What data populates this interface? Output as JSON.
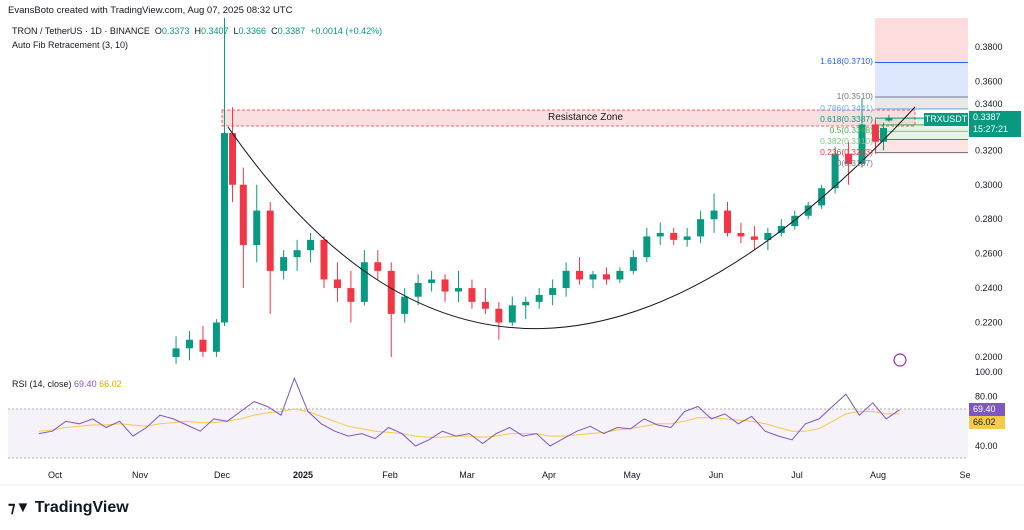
{
  "header": {
    "credit": "EvansBoto created with TradingView.com, Aug 07, 2025 08:32 UTC",
    "symbol": "TRON / TetherUS · 1D · BINANCE",
    "o_label": "O",
    "o": "0.3373",
    "h_label": "H",
    "h": "0.3407",
    "l_label": "L",
    "l": "0.3366",
    "c_label": "C",
    "c": "0.3387",
    "change": "+0.0014 (+0.42%)",
    "indicator": "Auto Fib Retracement (3, 10)"
  },
  "colors": {
    "up": "#089981",
    "down": "#f23645",
    "rsi": "#7e57c2",
    "rsi_ma": "#f7c948",
    "cup": "#131722"
  },
  "chart_data": [
    {
      "type": "candlestick",
      "price_axis": {
        "ticks": [
          "0.3800",
          "0.3600",
          "0.3400",
          "0.3200",
          "0.3000",
          "0.2800",
          "0.2600",
          "0.2400",
          "0.2200",
          "0.2000"
        ],
        "range": [
          0.195,
          0.39
        ]
      },
      "time_axis": {
        "ticks": [
          "Oct",
          "Nov",
          "Dec",
          "2025",
          "Feb",
          "Mar",
          "Apr",
          "May",
          "Jun",
          "Jul",
          "Aug",
          "Se"
        ]
      },
      "last_price": {
        "symbol": "TRXUSDT",
        "value": "0.3387",
        "countdown": "15:27:21"
      },
      "annotation": "Resistance Zone",
      "resistance_zone": [
        0.3348,
        0.344
      ],
      "fib_levels": [
        {
          "label": "1.618(0.3710)",
          "value": 0.371,
          "color": "#2962ff"
        },
        {
          "label": "1(0.3510)",
          "value": 0.351,
          "color": "#787b86"
        },
        {
          "label": "0.786(0.3441)",
          "value": 0.3441,
          "color": "#64b5f6"
        },
        {
          "label": "0.618(0.3387)",
          "value": 0.3387,
          "color": "#089981"
        },
        {
          "label": "0.5(0.3348)",
          "value": 0.3348,
          "color": "#4caf50"
        },
        {
          "label": "0.382(0.3310)",
          "value": 0.331,
          "color": "#81c784"
        },
        {
          "label": "0.236(0.3263)",
          "value": 0.3263,
          "color": "#f23645"
        },
        {
          "label": "0(0.3187)",
          "value": 0.3187,
          "color": "#787b86"
        }
      ],
      "candles": [
        [
          "2024-11-15",
          0.2,
          0.212,
          0.196,
          0.205
        ],
        [
          "2024-11-20",
          0.205,
          0.215,
          0.198,
          0.21
        ],
        [
          "2024-11-25",
          0.21,
          0.218,
          0.2,
          0.203
        ],
        [
          "2024-11-30",
          0.203,
          0.222,
          0.2,
          0.22
        ],
        [
          "2024-12-03",
          0.22,
          0.449,
          0.218,
          0.33
        ],
        [
          "2024-12-06",
          0.33,
          0.345,
          0.29,
          0.3
        ],
        [
          "2024-12-10",
          0.3,
          0.31,
          0.24,
          0.265
        ],
        [
          "2024-12-15",
          0.265,
          0.3,
          0.255,
          0.285
        ],
        [
          "2024-12-20",
          0.285,
          0.29,
          0.225,
          0.25
        ],
        [
          "2024-12-25",
          0.25,
          0.262,
          0.245,
          0.258
        ],
        [
          "2024-12-30",
          0.258,
          0.268,
          0.25,
          0.262
        ],
        [
          "2025-01-04",
          0.262,
          0.272,
          0.255,
          0.268
        ],
        [
          "2025-01-09",
          0.268,
          0.27,
          0.24,
          0.245
        ],
        [
          "2025-01-14",
          0.245,
          0.255,
          0.232,
          0.24
        ],
        [
          "2025-01-19",
          0.24,
          0.25,
          0.22,
          0.232
        ],
        [
          "2025-01-24",
          0.232,
          0.262,
          0.23,
          0.255
        ],
        [
          "2025-01-29",
          0.255,
          0.262,
          0.245,
          0.25
        ],
        [
          "2025-02-03",
          0.25,
          0.255,
          0.2,
          0.225
        ],
        [
          "2025-02-08",
          0.225,
          0.24,
          0.22,
          0.235
        ],
        [
          "2025-02-13",
          0.235,
          0.248,
          0.23,
          0.243
        ],
        [
          "2025-02-18",
          0.243,
          0.25,
          0.238,
          0.245
        ],
        [
          "2025-02-23",
          0.245,
          0.248,
          0.232,
          0.238
        ],
        [
          "2025-02-28",
          0.238,
          0.25,
          0.232,
          0.24
        ],
        [
          "2025-03-05",
          0.24,
          0.245,
          0.228,
          0.232
        ],
        [
          "2025-03-10",
          0.232,
          0.24,
          0.225,
          0.228
        ],
        [
          "2025-03-15",
          0.228,
          0.232,
          0.21,
          0.22
        ],
        [
          "2025-03-20",
          0.22,
          0.235,
          0.218,
          0.23
        ],
        [
          "2025-03-25",
          0.23,
          0.235,
          0.222,
          0.232
        ],
        [
          "2025-03-30",
          0.232,
          0.24,
          0.228,
          0.236
        ],
        [
          "2025-04-04",
          0.236,
          0.245,
          0.23,
          0.24
        ],
        [
          "2025-04-09",
          0.24,
          0.255,
          0.235,
          0.25
        ],
        [
          "2025-04-14",
          0.25,
          0.258,
          0.242,
          0.245
        ],
        [
          "2025-04-19",
          0.245,
          0.25,
          0.24,
          0.248
        ],
        [
          "2025-04-24",
          0.248,
          0.252,
          0.242,
          0.245
        ],
        [
          "2025-04-29",
          0.245,
          0.252,
          0.243,
          0.25
        ],
        [
          "2025-05-04",
          0.25,
          0.262,
          0.248,
          0.258
        ],
        [
          "2025-05-09",
          0.258,
          0.275,
          0.255,
          0.27
        ],
        [
          "2025-05-14",
          0.27,
          0.278,
          0.265,
          0.272
        ],
        [
          "2025-05-19",
          0.272,
          0.275,
          0.265,
          0.268
        ],
        [
          "2025-05-24",
          0.268,
          0.275,
          0.264,
          0.27
        ],
        [
          "2025-05-29",
          0.27,
          0.285,
          0.266,
          0.28
        ],
        [
          "2025-06-03",
          0.28,
          0.295,
          0.272,
          0.285
        ],
        [
          "2025-06-08",
          0.285,
          0.29,
          0.27,
          0.272
        ],
        [
          "2025-06-13",
          0.272,
          0.278,
          0.266,
          0.27
        ],
        [
          "2025-06-18",
          0.27,
          0.276,
          0.262,
          0.268
        ],
        [
          "2025-06-23",
          0.268,
          0.275,
          0.262,
          0.272
        ],
        [
          "2025-06-28",
          0.272,
          0.28,
          0.27,
          0.276
        ],
        [
          "2025-07-03",
          0.276,
          0.285,
          0.274,
          0.282
        ],
        [
          "2025-07-08",
          0.282,
          0.29,
          0.28,
          0.288
        ],
        [
          "2025-07-13",
          0.288,
          0.3,
          0.286,
          0.298
        ],
        [
          "2025-07-18",
          0.298,
          0.322,
          0.295,
          0.318
        ],
        [
          "2025-07-23",
          0.318,
          0.325,
          0.3,
          0.312
        ],
        [
          "2025-07-28",
          0.312,
          0.35,
          0.31,
          0.335
        ],
        [
          "2025-08-02",
          0.335,
          0.338,
          0.318,
          0.325
        ],
        [
          "2025-08-05",
          0.325,
          0.336,
          0.32,
          0.333
        ],
        [
          "2025-08-07",
          0.3373,
          0.3407,
          0.3366,
          0.3387
        ]
      ]
    },
    {
      "type": "line",
      "title": "RSI (14, close)",
      "value": "69.40",
      "ma_value": "66.02",
      "axis": {
        "ticks": [
          "100.00",
          "80.00",
          "40.00"
        ],
        "range": [
          30,
          100
        ],
        "bands": [
          30,
          70
        ]
      },
      "dates_from": "2024-09-25",
      "step_days": 5,
      "rsi": [
        50,
        52,
        60,
        58,
        62,
        55,
        60,
        48,
        55,
        65,
        62,
        57,
        52,
        62,
        60,
        68,
        76,
        72,
        65,
        95,
        68,
        58,
        52,
        48,
        50,
        46,
        55,
        50,
        40,
        45,
        52,
        48,
        50,
        42,
        50,
        55,
        48,
        50,
        40,
        46,
        52,
        56,
        50,
        55,
        54,
        62,
        57,
        55,
        68,
        72,
        62,
        66,
        58,
        64,
        52,
        48,
        45,
        58,
        62,
        72,
        82,
        65,
        75,
        62,
        69.4
      ],
      "ma": [
        52,
        53,
        55,
        56,
        57,
        57,
        58,
        57,
        56,
        58,
        59,
        60,
        59,
        59,
        60,
        62,
        65,
        67,
        68,
        70,
        68,
        64,
        60,
        56,
        54,
        52,
        51,
        50,
        48,
        47,
        47,
        48,
        48,
        47,
        48,
        50,
        50,
        50,
        48,
        48,
        49,
        50,
        51,
        53,
        54,
        56,
        58,
        58,
        60,
        63,
        63,
        62,
        61,
        60,
        58,
        55,
        52,
        52,
        54,
        60,
        66,
        68,
        68,
        66,
        66.02
      ]
    }
  ],
  "branding": {
    "logo": "TradingView"
  }
}
